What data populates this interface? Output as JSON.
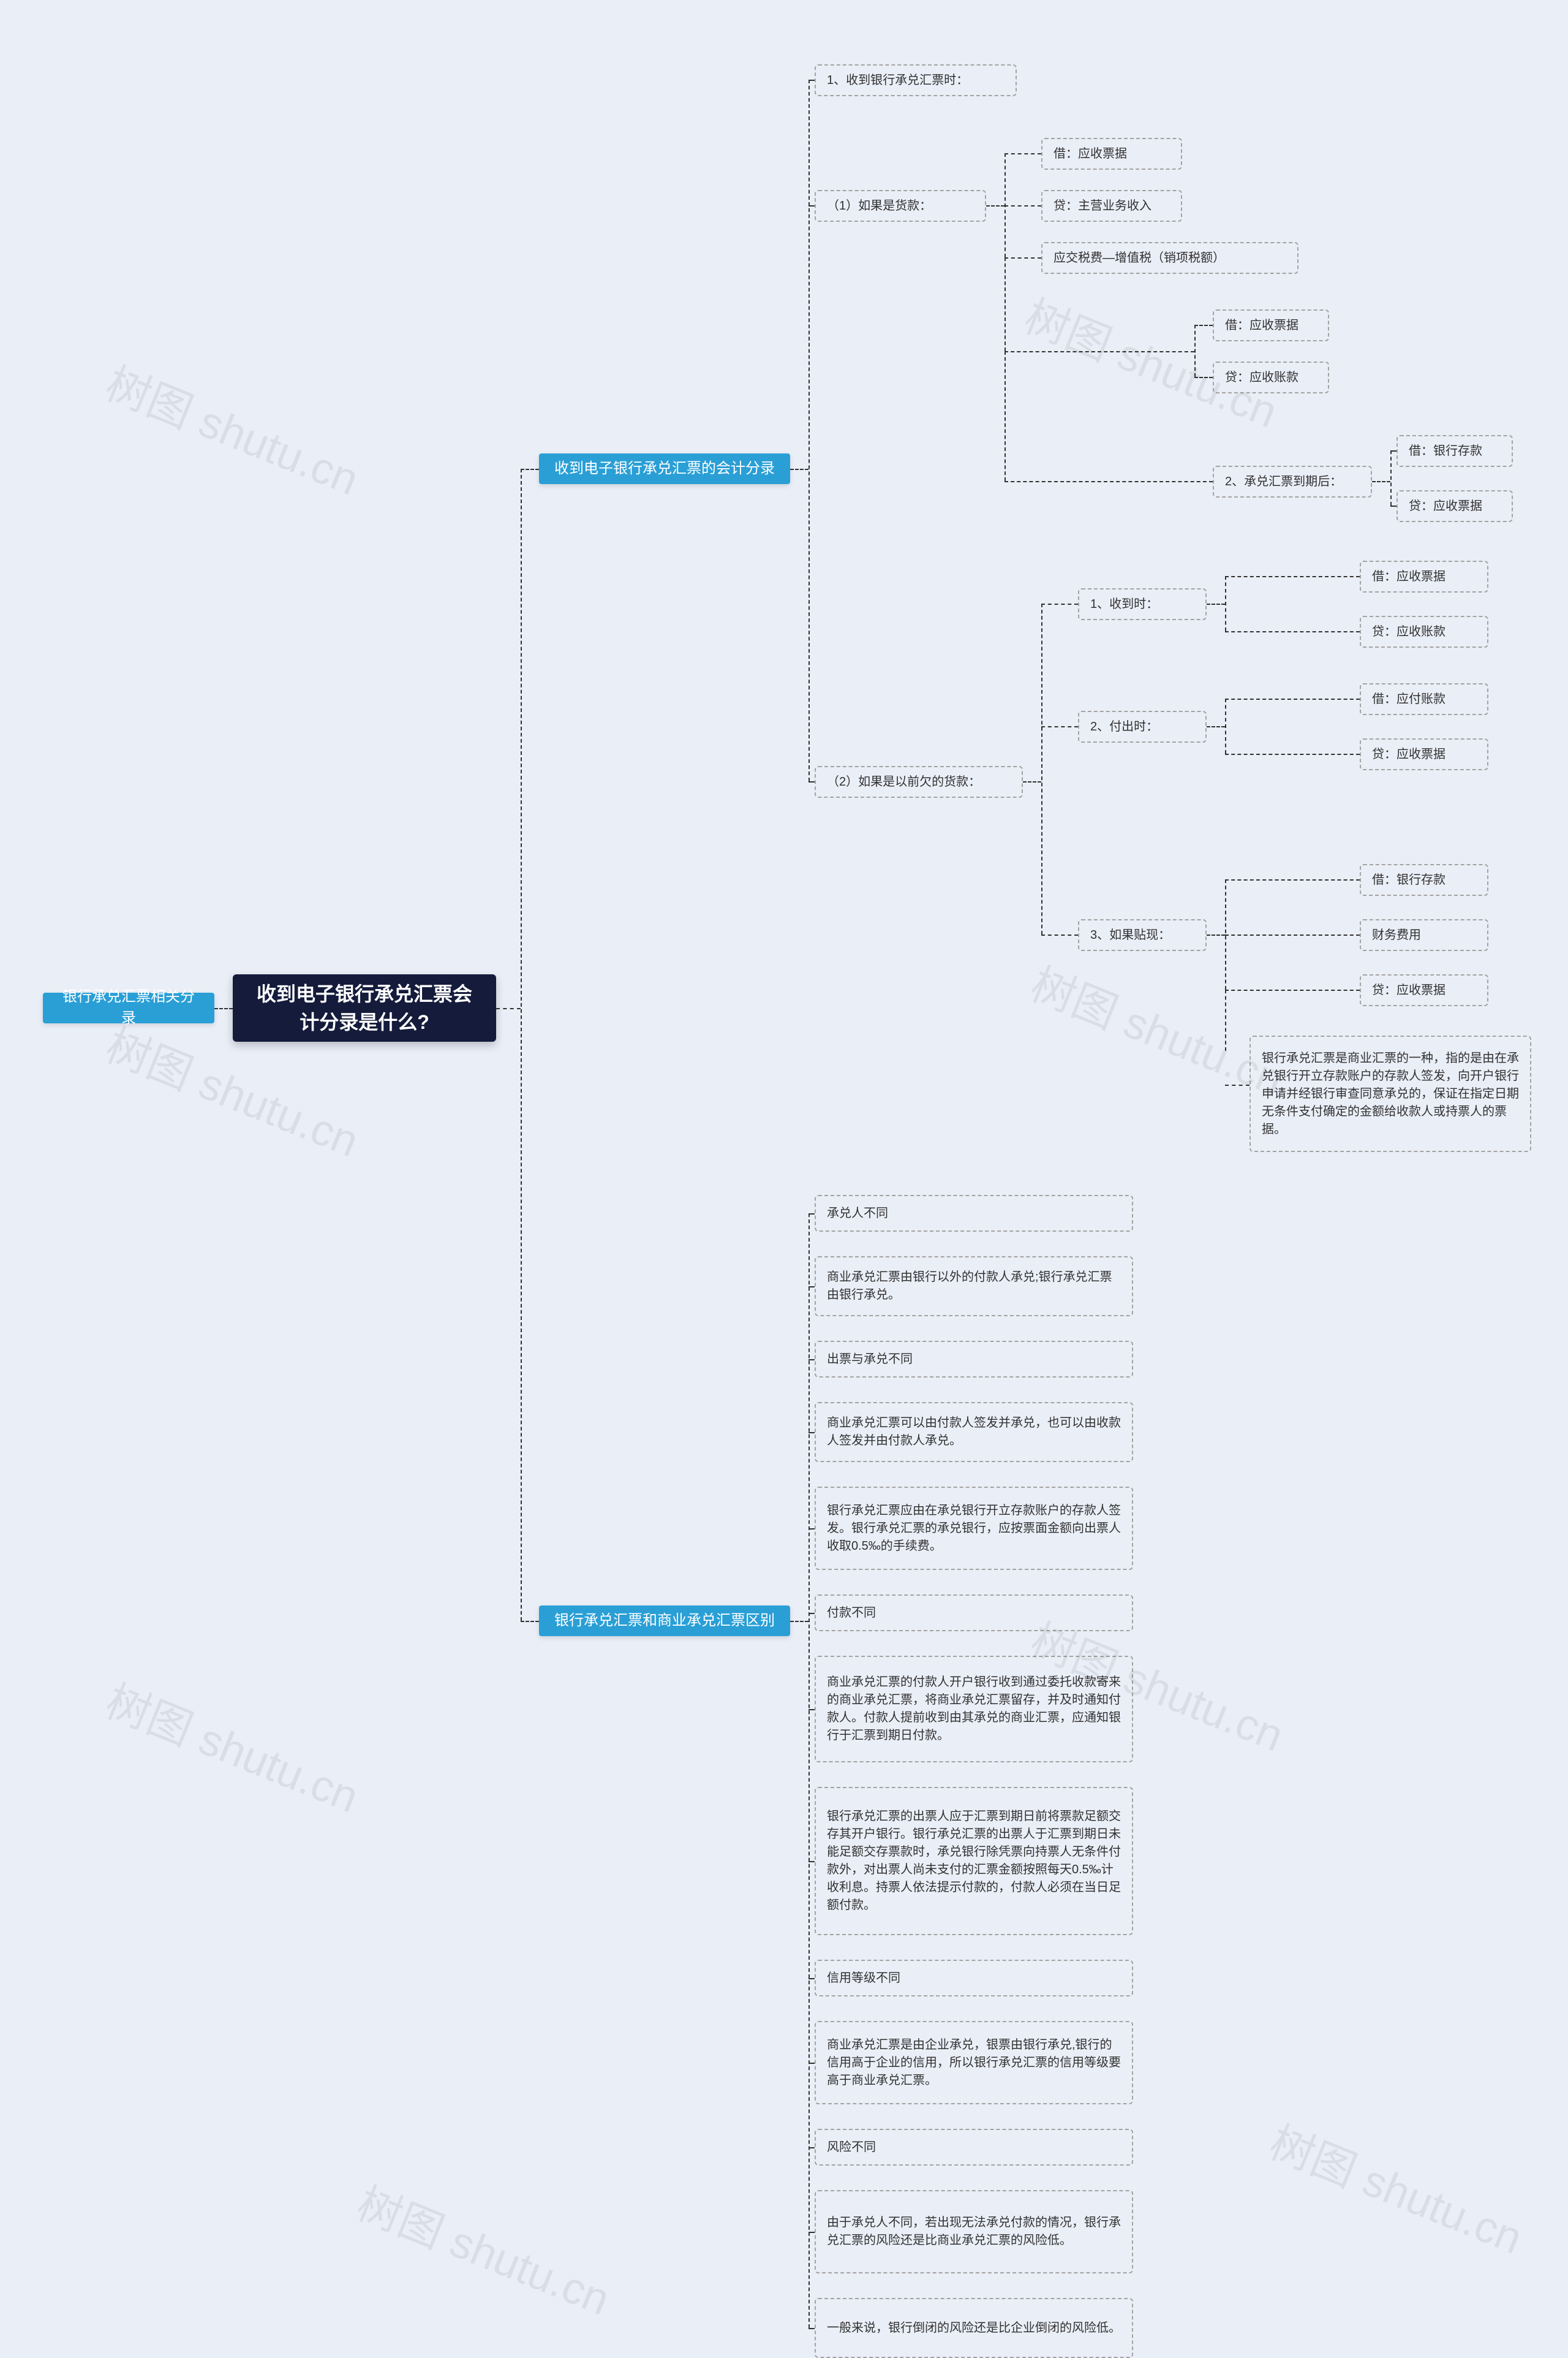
{
  "colors": {
    "bg": "#eaeef7",
    "root_bg": "#141b3b",
    "root_fg": "#ffffff",
    "blue_bg": "#2a9fd6",
    "blue_fg": "#ffffff",
    "leaf_border": "#a3a3a3",
    "leaf_fg": "#313131",
    "connector": "#313131",
    "wm": "rgba(0,0,0,0.07)"
  },
  "watermark_text": "树图 shutu.cn",
  "root": {
    "text": "收到电子银行承兑汇票会\n计分录是什么?"
  },
  "left_tag": {
    "text": "银行承兑汇票相关分录"
  },
  "sec1_title": {
    "text": "收到电子银行承兑汇票的会计分录"
  },
  "sec2_title": {
    "text": "银行承兑汇票和商业承兑汇票区别"
  },
  "s1_n1": "1、收到银行承兑汇票时：",
  "s1_c1": "（1）如果是货款：",
  "s1_c1_a": "借：应收票据",
  "s1_c1_b": "贷：主营业务收入",
  "s1_c1_c": "应交税费—增值税（销项税额）",
  "s1_c1_d": "借：应收票据",
  "s1_c1_e": "贷：应收账款",
  "s1_c2_hdr": "2、承兑汇票到期后：",
  "s1_c2_a": "借：银行存款",
  "s1_c2_b": "贷：应收票据",
  "s1_c3": "（2）如果是以前欠的货款：",
  "s1_c3_1": "1、收到时：",
  "s1_c3_1a": "借：应收票据",
  "s1_c3_1b": "贷：应收账款",
  "s1_c3_2": "2、付出时：",
  "s1_c3_2a": "借：应付账款",
  "s1_c3_2b": "贷：应收票据",
  "s1_c3_3": "3、如果贴现：",
  "s1_c3_3a": "借：银行存款",
  "s1_c3_3b": "财务费用",
  "s1_c3_3c": "贷：应收票据",
  "s1_c3_note": "银行承兑汇票是商业汇票的一种，指的是由在承兑银行开立存款账户的存款人签发，向开户银行申请并经银行审查同意承兑的，保证在指定日期无条件支付确定的金额给收款人或持票人的票据。",
  "s2_items": [
    "承兑人不同",
    "商业承兑汇票由银行以外的付款人承兑;银行承兑汇票由银行承兑。",
    "出票与承兑不同",
    "商业承兑汇票可以由付款人签发并承兑，也可以由收款人签发并由付款人承兑。",
    "银行承兑汇票应由在承兑银行开立存款账户的存款人签发。银行承兑汇票的承兑银行，应按票面金额向出票人收取0.5‰的手续费。",
    "付款不同",
    "商业承兑汇票的付款人开户银行收到通过委托收款寄来的商业承兑汇票，将商业承兑汇票留存，并及时通知付款人。付款人提前收到由其承兑的商业汇票，应通知银行于汇票到期日付款。",
    "银行承兑汇票的出票人应于汇票到期日前将票款足额交存其开户银行。银行承兑汇票的出票人于汇票到期日未能足额交存票款时，承兑银行除凭票向持票人无条件付款外，对出票人尚未支付的汇票金额按照每天0.5‰计收利息。持票人依法提示付款的，付款人必须在当日足额付款。",
    "信用等级不同",
    "商业承兑汇票是由企业承兑，银票由银行承兑,银行的信用高于企业的信用，所以银行承兑汇票的信用等级要高于商业承兑汇票。",
    "风险不同",
    "由于承兑人不同，若出现无法承兑付款的情况，银行承兑汇票的风险还是比商业承兑汇票的风险低。",
    "一般来说，银行倒闭的风险还是比企业倒闭的风险低。"
  ],
  "s2_heights": [
    60,
    98,
    60,
    98,
    136,
    60,
    174,
    242,
    60,
    136,
    60,
    136,
    98
  ]
}
